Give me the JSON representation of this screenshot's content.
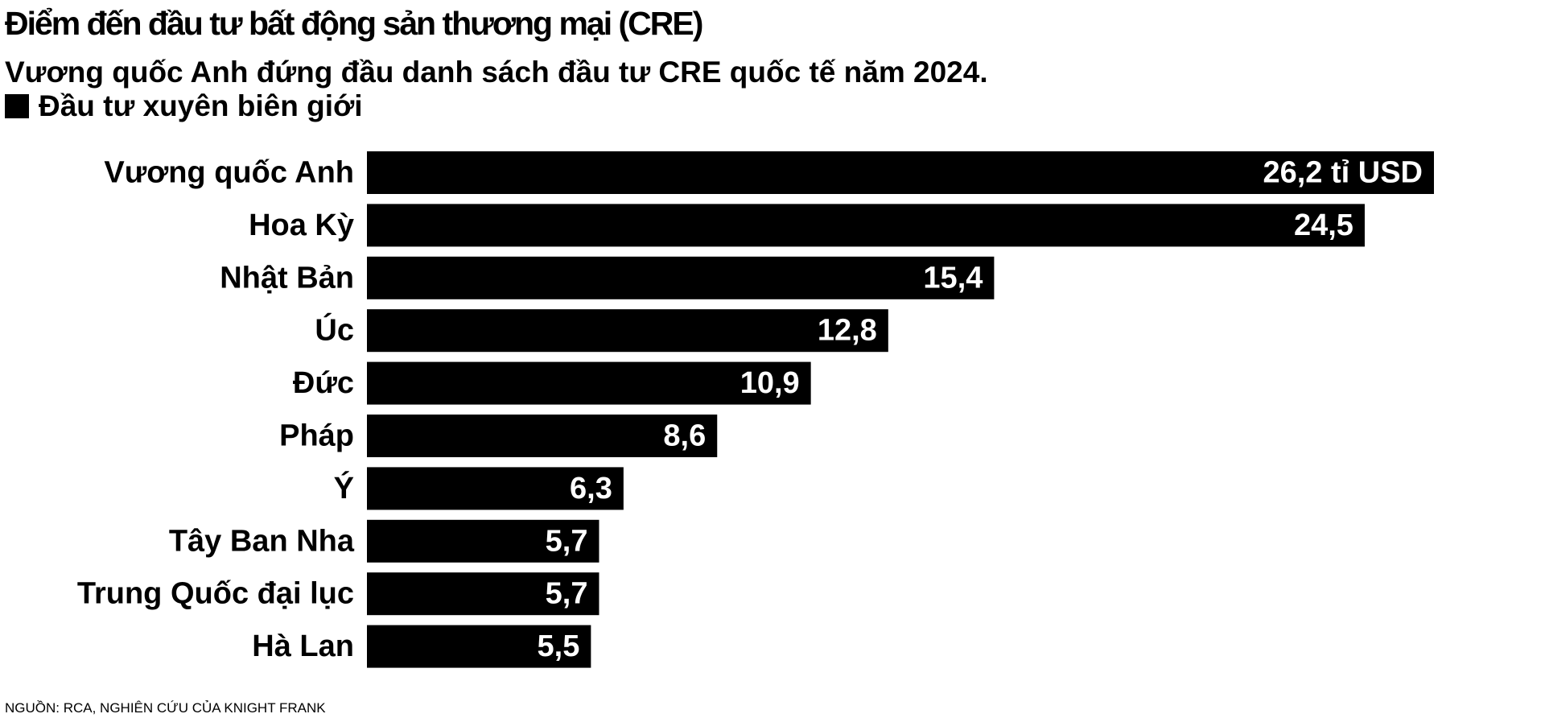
{
  "chart_data": {
    "type": "bar",
    "orientation": "horizontal",
    "title": "Điểm đến đầu tư bất động sản thương mại (CRE)",
    "subtitle": "Vương quốc Anh đứng đầu danh sách đầu tư CRE quốc tế năm 2024.",
    "categories": [
      "Vương quốc Anh",
      "Hoa Kỳ",
      "Nhật Bản",
      "Úc",
      "Đức",
      "Pháp",
      "Ý",
      "Tây Ban Nha",
      "Trung Quốc đại lục",
      "Hà Lan"
    ],
    "series": [
      {
        "name": "Đầu tư xuyên biên giới",
        "values": [
          26.2,
          24.5,
          15.4,
          12.8,
          10.9,
          8.6,
          6.3,
          5.7,
          5.7,
          5.5
        ],
        "value_labels": [
          "26,2 tỉ USD",
          "24,5",
          "15,4",
          "12,8",
          "10,9",
          "8,6",
          "6,3",
          "5,7",
          "5,7",
          "5,5"
        ],
        "color": "#000000"
      }
    ],
    "xlim": [
      0,
      26.2
    ],
    "grid": false,
    "legend": "top-left",
    "source": "NGUỒN: RCA, NGHIÊN CỨU CỦA KNIGHT FRANK"
  },
  "colors": {
    "bar": "#000000",
    "value_text": "#ffffff",
    "text": "#000000",
    "background": "#ffffff"
  }
}
